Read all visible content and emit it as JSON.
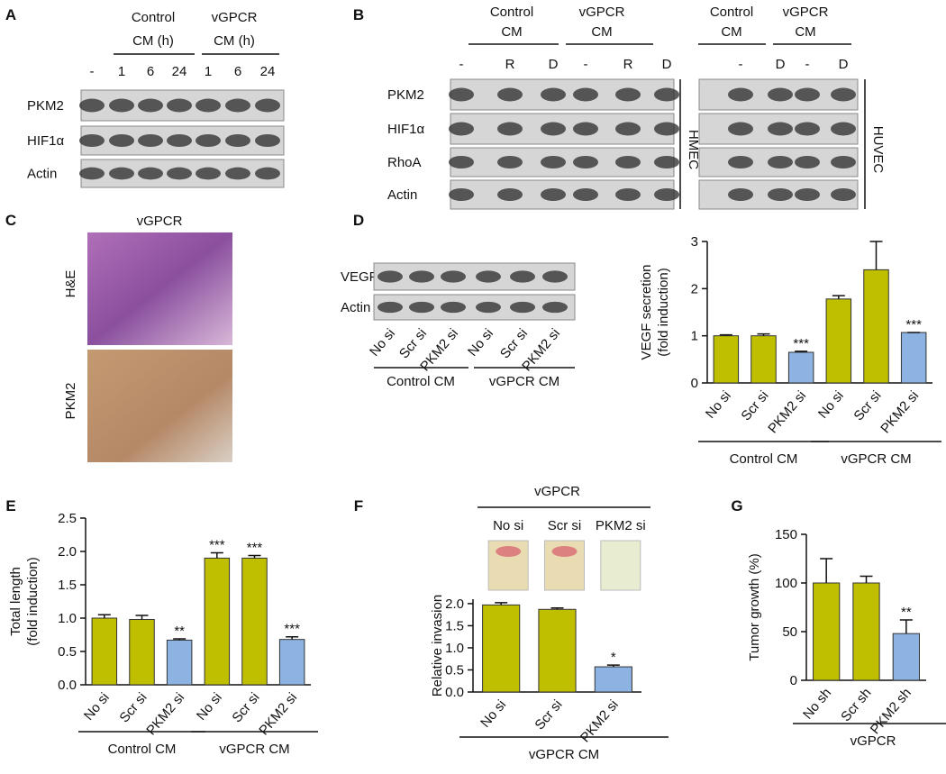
{
  "blot_a": {
    "panel": "A",
    "groups": [
      [
        "Control",
        "CM (h)"
      ],
      [
        "vGPCR",
        "CM (h)"
      ]
    ],
    "lanes": [
      "-",
      "1",
      "6",
      "24",
      "1",
      "6",
      "24"
    ],
    "rows": [
      "PKM2",
      "HIF1α",
      "Actin"
    ]
  },
  "blot_b": {
    "panel": "B",
    "rows": [
      "PKM2",
      "HIF1α",
      "RhoA",
      "Actin"
    ],
    "hmec": {
      "groups": [
        [
          "Control",
          "CM"
        ],
        [
          "vGPCR",
          "CM"
        ]
      ],
      "lanes": [
        "-",
        "R",
        "D",
        "-",
        "R",
        "D"
      ],
      "cell_line": "HMEC"
    },
    "huvec": {
      "groups": [
        [
          "Control",
          "CM"
        ],
        [
          "vGPCR",
          "CM"
        ]
      ],
      "lanes": [
        "-",
        "D",
        "-",
        "D"
      ],
      "cell_line": "HUVEC"
    }
  },
  "histology_c": {
    "panel": "C",
    "title": "vGPCR",
    "rows": [
      "H&E",
      "PKM2"
    ]
  },
  "blot_d": {
    "panel": "D",
    "rows": [
      "VEGF",
      "Actin"
    ],
    "lanes": [
      "No si",
      "Scr si",
      "PKM2 si",
      "No si",
      "Scr si",
      "PKM2 si"
    ],
    "groups": [
      "Control CM",
      "vGPCR CM"
    ]
  },
  "chart_data": [
    {
      "type": "bar",
      "ylabel": [
        "VEGF secretion",
        "(fold induction)"
      ],
      "categories": [
        "No si",
        "Scr si",
        "PKM2 si",
        "No si",
        "Scr si",
        "PKM2 si"
      ],
      "values": [
        1.0,
        1.0,
        0.65,
        1.78,
        2.4,
        1.07
      ],
      "errors": [
        0.02,
        0.04,
        0.02,
        0.07,
        0.6,
        0
      ],
      "annotations": [
        null,
        null,
        "***",
        null,
        null,
        "***"
      ],
      "colors": [
        "#bfbf00",
        "#bfbf00",
        "#8db3e2",
        "#bfbf00",
        "#bfbf00",
        "#8db3e2"
      ],
      "ylim": [
        0,
        3
      ],
      "yticks": [
        0,
        1,
        2,
        3
      ],
      "groups": [
        "Control CM",
        "vGPCR CM"
      ]
    },
    {
      "type": "bar",
      "panel": "E",
      "ylabel": [
        "Total length",
        "(fold induction)"
      ],
      "categories": [
        "No si",
        "Scr si",
        "PKM2 si",
        "No si",
        "Scr si",
        "PKM2 si"
      ],
      "values": [
        1.0,
        0.98,
        0.67,
        1.9,
        1.9,
        0.68
      ],
      "errors": [
        0.05,
        0.06,
        0.02,
        0.08,
        0.04,
        0.04
      ],
      "annotations": [
        null,
        null,
        "**",
        "***",
        "***",
        "***"
      ],
      "colors": [
        "#bfbf00",
        "#bfbf00",
        "#8db3e2",
        "#bfbf00",
        "#bfbf00",
        "#8db3e2"
      ],
      "ylim": [
        0,
        2.5
      ],
      "yticks": [
        {
          "value": 0,
          "label": "0.0"
        },
        0.5,
        {
          "value": 1,
          "label": "1.0"
        },
        1.5,
        {
          "value": 2,
          "label": "2.0"
        },
        2.5
      ],
      "groups": [
        "Control CM",
        "vGPCR CM"
      ]
    },
    {
      "type": "bar",
      "panel": "F",
      "header": "vGPCR",
      "image_labels": [
        "No si",
        "Scr si",
        "PKM2 si"
      ],
      "ylabel": [
        "Relative invasion"
      ],
      "categories": [
        "No si",
        "Scr si",
        "PKM2 si"
      ],
      "values": [
        1.97,
        1.87,
        0.57
      ],
      "errors": [
        0.05,
        0.03,
        0.04
      ],
      "annotations": [
        null,
        null,
        "*"
      ],
      "colors": [
        "#bfbf00",
        "#bfbf00",
        "#8db3e2"
      ],
      "ylim": [
        0,
        2.1
      ],
      "yticks": [
        {
          "value": 0,
          "label": "0.0"
        },
        0.5,
        {
          "value": 1,
          "label": "1.0"
        },
        1.5,
        {
          "value": 2,
          "label": "2.0"
        }
      ],
      "groups": [
        "vGPCR CM"
      ]
    },
    {
      "type": "bar",
      "panel": "G",
      "ylabel": [
        "Tumor growth (%)"
      ],
      "categories": [
        "No sh",
        "Scr sh",
        "PKM2 sh"
      ],
      "values": [
        100,
        100,
        48
      ],
      "errors": [
        25,
        7,
        14
      ],
      "annotations": [
        null,
        null,
        "**"
      ],
      "colors": [
        "#bfbf00",
        "#bfbf00",
        "#8db3e2"
      ],
      "ylim": [
        0,
        150
      ],
      "yticks": [
        0,
        50,
        100,
        150
      ],
      "groups": [
        "vGPCR"
      ]
    }
  ]
}
